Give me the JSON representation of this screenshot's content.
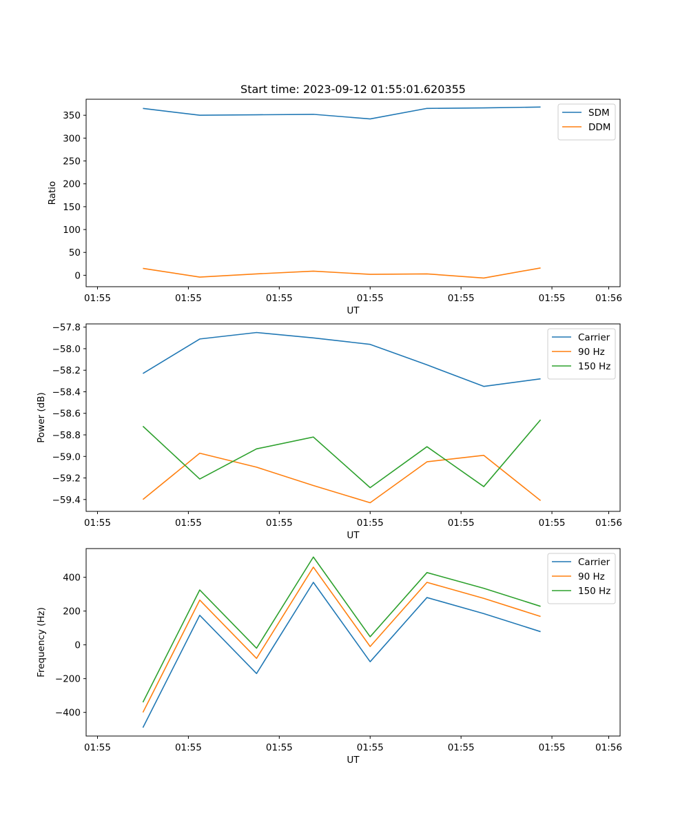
{
  "chart_data": [
    {
      "type": "line",
      "title": "Start time: 2023-09-12 01:55:01.620355",
      "xlabel": "UT",
      "ylabel": "Ratio",
      "x": [
        0.5,
        1.0,
        1.5,
        2.0,
        2.5,
        3.0,
        3.5,
        4.0
      ],
      "xlim": [
        0,
        4.7
      ],
      "xticks": [
        0.1,
        0.9,
        1.7,
        2.5,
        3.3,
        4.1
      ],
      "xtick_labels": [
        "01:55",
        "01:55",
        "01:55",
        "01:55",
        "01:55",
        "01:55"
      ],
      "xticks_extra": [
        {
          "pos": 4.6,
          "label": "01:56"
        }
      ],
      "ylim": [
        -25,
        385
      ],
      "yticks": [
        0,
        50,
        100,
        150,
        200,
        250,
        300,
        350
      ],
      "ytick_labels": [
        "0",
        "50",
        "100",
        "150",
        "200",
        "250",
        "300",
        "350"
      ],
      "legend": "top-right",
      "series": [
        {
          "name": "SDM",
          "color": "#1f77b4",
          "values": [
            365,
            350,
            351,
            352,
            342,
            365,
            366,
            368
          ]
        },
        {
          "name": "DDM",
          "color": "#ff7f0e",
          "values": [
            15,
            -4,
            3,
            9,
            2,
            3,
            -6,
            16
          ]
        }
      ]
    },
    {
      "type": "line",
      "title": "",
      "xlabel": "UT",
      "ylabel": "Power (dB)",
      "x": [
        0.5,
        1.0,
        1.5,
        2.0,
        2.5,
        3.0,
        3.5,
        4.0
      ],
      "xlim": [
        0,
        4.7
      ],
      "xticks": [
        0.1,
        0.9,
        1.7,
        2.5,
        3.3,
        4.1
      ],
      "xtick_labels": [
        "01:55",
        "01:55",
        "01:55",
        "01:55",
        "01:55",
        "01:55"
      ],
      "xticks_extra": [
        {
          "pos": 4.6,
          "label": "01:56"
        }
      ],
      "ylim": [
        -59.51,
        -57.77
      ],
      "yticks": [
        -59.4,
        -59.2,
        -59.0,
        -58.8,
        -58.6,
        -58.4,
        -58.2,
        -58.0,
        -57.8
      ],
      "ytick_labels": [
        "−59.4",
        "−59.2",
        "−59.0",
        "−58.8",
        "−58.6",
        "−58.4",
        "−58.2",
        "−58.0",
        "−57.8"
      ],
      "legend": "top-right",
      "series": [
        {
          "name": "Carrier",
          "color": "#1f77b4",
          "values": [
            -58.23,
            -57.91,
            -57.85,
            -57.9,
            -57.96,
            -58.15,
            -58.35,
            -58.28
          ]
        },
        {
          "name": "90 Hz",
          "color": "#ff7f0e",
          "values": [
            -59.4,
            -58.97,
            -59.1,
            -59.27,
            -59.43,
            -59.05,
            -58.99,
            -59.41
          ]
        },
        {
          "name": "150 Hz",
          "color": "#2ca02c",
          "values": [
            -58.72,
            -59.21,
            -58.93,
            -58.82,
            -59.29,
            -58.91,
            -59.28,
            -58.66
          ]
        }
      ]
    },
    {
      "type": "line",
      "title": "",
      "xlabel": "UT",
      "ylabel": "Frequency (Hz)",
      "x": [
        0.5,
        1.0,
        1.5,
        2.0,
        2.5,
        3.0,
        3.5,
        4.0
      ],
      "xlim": [
        0,
        4.7
      ],
      "xticks": [
        0.1,
        0.9,
        1.7,
        2.5,
        3.3,
        4.1
      ],
      "xtick_labels": [
        "01:55",
        "01:55",
        "01:55",
        "01:55",
        "01:55",
        "01:55"
      ],
      "xticks_extra": [
        {
          "pos": 4.6,
          "label": "01:56"
        }
      ],
      "ylim": [
        -540,
        570
      ],
      "yticks": [
        -400,
        -200,
        0,
        200,
        400
      ],
      "ytick_labels": [
        "−400",
        "−200",
        "0",
        "200",
        "400"
      ],
      "legend": "top-right",
      "series": [
        {
          "name": "Carrier",
          "color": "#1f77b4",
          "values": [
            -490,
            175,
            -170,
            370,
            -100,
            280,
            185,
            78
          ]
        },
        {
          "name": "90 Hz",
          "color": "#ff7f0e",
          "values": [
            -400,
            265,
            -80,
            460,
            -10,
            370,
            275,
            168
          ]
        },
        {
          "name": "150 Hz",
          "color": "#2ca02c",
          "values": [
            -340,
            325,
            -20,
            520,
            48,
            428,
            335,
            228
          ]
        }
      ]
    }
  ]
}
